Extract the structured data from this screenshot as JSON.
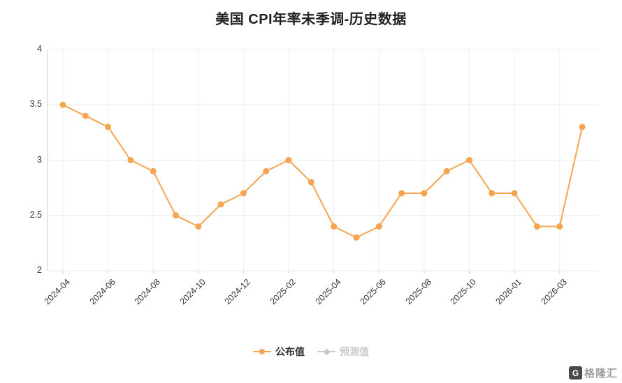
{
  "watermark": {
    "text": "格隆汇",
    "logo_text": "G"
  },
  "colors": {
    "published": "#F6A44F",
    "forecast": "#C9C9C9",
    "grid": "#E8E8E8",
    "grid_light": "#F1F1F1",
    "axis": "#CCCCCC",
    "text_dark": "#333333",
    "title": "#222222"
  },
  "chart_data": {
    "type": "line",
    "title": "美国 CPI年率未季调-历史数据",
    "xlabel": "",
    "ylabel": "",
    "ylim": [
      2,
      4
    ],
    "y_ticks": [
      2,
      2.5,
      3,
      3.5,
      4
    ],
    "x_tick_labels": [
      "2024-04",
      "2024-06",
      "2024-08",
      "2024-10",
      "2024-12",
      "2025-02",
      "2025-04",
      "2025-06",
      "2025-08",
      "2025-10",
      "2026-01",
      "2026-03"
    ],
    "x_tick_every": 2,
    "grid": "both",
    "legend_position": "bottom",
    "series": [
      {
        "name": "公布值",
        "type": "line",
        "marker": "circle",
        "color": "#F6A44F",
        "visible": true,
        "values": [
          3.5,
          3.4,
          3.3,
          3.0,
          2.9,
          2.5,
          2.4,
          2.6,
          2.7,
          2.9,
          3.0,
          2.8,
          2.4,
          2.3,
          2.4,
          2.7,
          2.7,
          2.9,
          3.0,
          2.7,
          2.7,
          2.4,
          2.4,
          3.3
        ]
      },
      {
        "name": "预测值",
        "type": "line",
        "marker": "diamond",
        "color": "#C9C9C9",
        "visible": false,
        "values": []
      }
    ]
  }
}
